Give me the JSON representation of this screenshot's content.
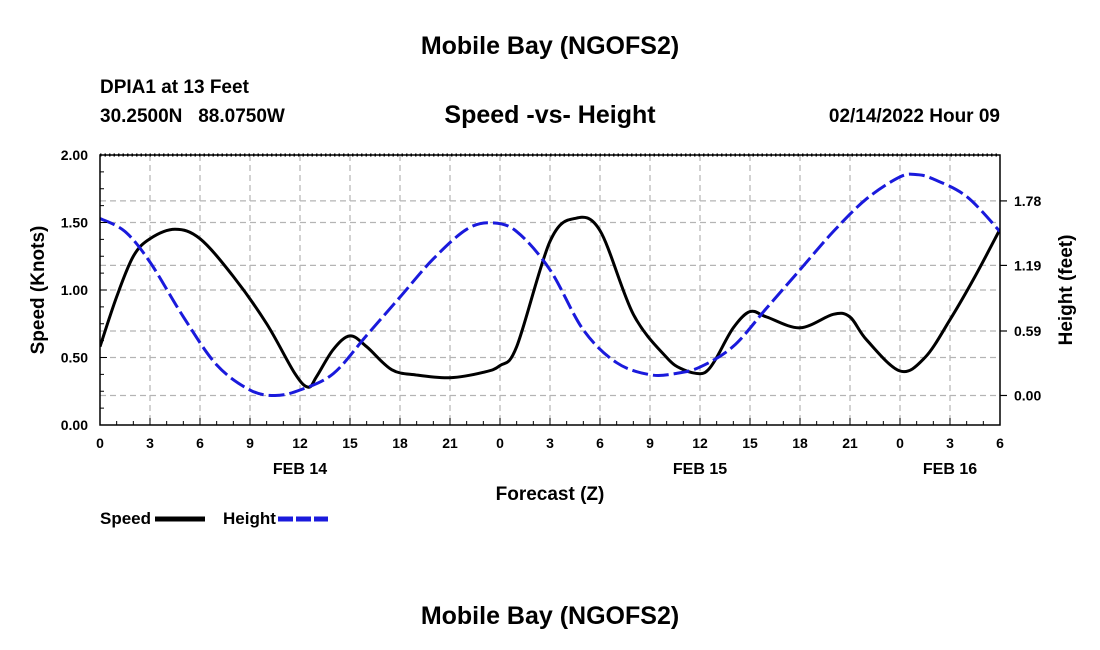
{
  "page": {
    "title": "Mobile Bay (NGOFS2)",
    "station": "DPIA1 at 13 Feet",
    "coords": "30.2500N   88.0750W",
    "datetime": "02/14/2022 Hour 09",
    "bottom_title": "Mobile Bay (NGOFS2)"
  },
  "chart_data": {
    "type": "line",
    "title": "Speed -vs- Height",
    "xlabel": "Forecast (Z)",
    "ylabel": "Speed (Knots)",
    "y2label": "Height (feet)",
    "xlim": [
      0,
      54
    ],
    "ylim": [
      0,
      2
    ],
    "y2lim": [
      -0.27,
      2.2
    ],
    "x_tick_values": [
      0,
      3,
      6,
      9,
      12,
      15,
      18,
      21,
      24,
      27,
      30,
      33,
      36,
      39,
      42,
      45,
      48,
      51,
      54
    ],
    "x_tick_labels": [
      "0",
      "3",
      "6",
      "9",
      "12",
      "15",
      "18",
      "21",
      "0",
      "3",
      "6",
      "9",
      "12",
      "15",
      "18",
      "21",
      "0",
      "3",
      "6"
    ],
    "date_labels": [
      {
        "x": 12,
        "label": "FEB 14"
      },
      {
        "x": 36,
        "label": "FEB 15"
      },
      {
        "x": 51,
        "label": "FEB 16"
      }
    ],
    "y_tick_values": [
      0,
      0.5,
      1,
      1.5,
      2
    ],
    "y_tick_labels": [
      "0.00",
      "0.50",
      "1.00",
      "1.50",
      "2.00"
    ],
    "y2_tick_values": [
      0,
      0.59,
      1.19,
      1.78
    ],
    "y2_tick_labels": [
      "0.00",
      "0.59",
      "1.19",
      "1.78"
    ],
    "legend": [
      {
        "name": "Speed",
        "color": "#000000",
        "dash": "solid"
      },
      {
        "name": "Height",
        "color": "#1a1adc",
        "dash": "dashed"
      }
    ],
    "series": [
      {
        "name": "Speed",
        "axis": "left",
        "color": "#000000",
        "x": [
          0,
          1,
          2,
          3,
          4.5,
          6,
          8,
          10,
          11.7,
          12.5,
          13,
          14,
          15,
          16,
          17.5,
          19,
          21,
          23,
          24,
          25,
          27,
          28.5,
          30,
          32,
          34,
          35,
          36,
          36.5,
          37,
          38,
          39,
          40,
          42,
          44,
          45,
          46,
          48,
          49.5,
          51,
          52.5,
          54
        ],
        "values": [
          0.58,
          0.95,
          1.25,
          1.38,
          1.45,
          1.38,
          1.1,
          0.75,
          0.38,
          0.28,
          0.36,
          0.56,
          0.66,
          0.58,
          0.41,
          0.37,
          0.35,
          0.39,
          0.44,
          0.58,
          1.36,
          1.53,
          1.44,
          0.82,
          0.5,
          0.41,
          0.38,
          0.41,
          0.5,
          0.72,
          0.84,
          0.8,
          0.72,
          0.82,
          0.8,
          0.63,
          0.4,
          0.5,
          0.78,
          1.1,
          1.45
        ]
      },
      {
        "name": "Height",
        "axis": "right",
        "color": "#1a1adc",
        "x": [
          0,
          1.5,
          3,
          5,
          7,
          9,
          10.5,
          12,
          14,
          16,
          18,
          20,
          22,
          23.5,
          25,
          27,
          29,
          31,
          33,
          34.5,
          36,
          38,
          40,
          42,
          44,
          46,
          48,
          49,
          50,
          52,
          54
        ],
        "values": [
          1.62,
          1.5,
          1.22,
          0.72,
          0.28,
          0.05,
          0,
          0.05,
          0.2,
          0.55,
          0.9,
          1.25,
          1.52,
          1.58,
          1.5,
          1.15,
          0.6,
          0.3,
          0.19,
          0.2,
          0.26,
          0.45,
          0.8,
          1.15,
          1.5,
          1.8,
          2.0,
          2.02,
          1.98,
          1.82,
          1.5
        ]
      }
    ]
  }
}
